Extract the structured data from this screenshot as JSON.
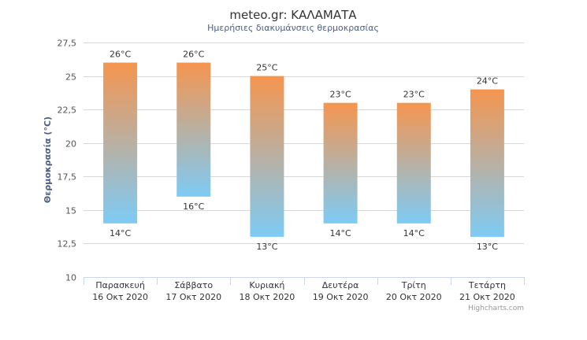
{
  "chart_data": {
    "type": "bar",
    "subtype": "columnrange",
    "title": "meteo.gr: ΚΑΛΑΜΑΤΑ",
    "subtitle": "Ημερήσιες διακυμάνσεις θερμοκρασίας",
    "ylabel": "Θερμοκρασία (°C)",
    "xlabel": "",
    "ylim": [
      10,
      27.5
    ],
    "yticks": [
      "10",
      "12,5",
      "15",
      "17,5",
      "20",
      "22,5",
      "25",
      "27,5"
    ],
    "ytick_values": [
      10,
      12.5,
      15,
      17.5,
      20,
      22.5,
      25,
      27.5
    ],
    "grid": true,
    "legend": "none",
    "categories": [
      {
        "day": "Παρασκευή",
        "date": "16 Οκτ 2020"
      },
      {
        "day": "Σάββατο",
        "date": "17 Οκτ 2020"
      },
      {
        "day": "Κυριακή",
        "date": "18 Οκτ 2020"
      },
      {
        "day": "Δευτέρα",
        "date": "19 Οκτ 2020"
      },
      {
        "day": "Τρίτη",
        "date": "20 Οκτ 2020"
      },
      {
        "day": "Τετάρτη",
        "date": "21 Οκτ 2020"
      }
    ],
    "series": [
      {
        "low": [
          14,
          16,
          13,
          14,
          14,
          13
        ],
        "high": [
          26,
          26,
          25,
          23,
          23,
          24
        ],
        "low_labels": [
          "14°C",
          "16°C",
          "13°C",
          "14°C",
          "14°C",
          "13°C"
        ],
        "high_labels": [
          "26°C",
          "26°C",
          "25°C",
          "23°C",
          "23°C",
          "24°C"
        ]
      }
    ],
    "colors": {
      "top": "#f5954f",
      "bottom": "#7ecbf5",
      "grid": "#d8d8d8",
      "axis": "#ccd6eb",
      "title": "#333333",
      "subtitle": "#4d5f86",
      "ylabel": "#4d5f86",
      "label": "#333333"
    },
    "credits": "Highcharts.com"
  }
}
